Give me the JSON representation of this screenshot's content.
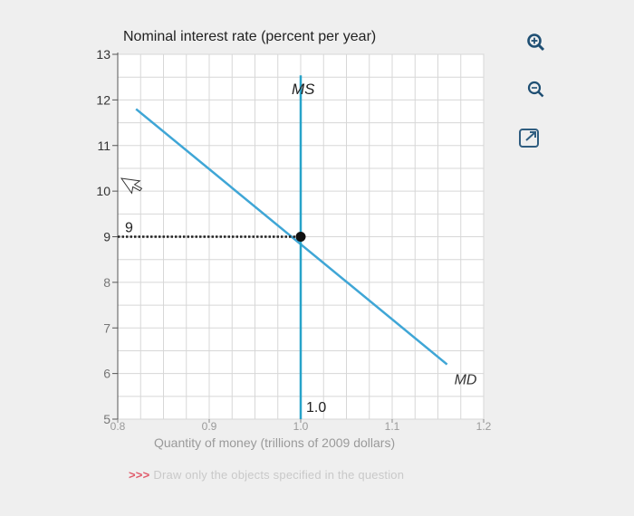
{
  "colors": {
    "curve": "#3fa6d6",
    "ms_line": "#27a3c9",
    "grid": "#d7d7d7",
    "point": "#111111",
    "hint_arrows": "#e05a6a",
    "hint_text": "#c9c9c9"
  },
  "icons": {
    "zoom_in": "zoom-in-icon",
    "zoom_out": "zoom-out-icon",
    "popout": "popout-icon"
  },
  "hint": {
    "arrows": ">>>",
    "text": "Draw only the objects specified in the question"
  },
  "chart_data": {
    "type": "line",
    "title": "",
    "ylabel": "Nominal interest rate (percent per year)",
    "xlabel": "Quantity of money (trillions of 2009 dollars)",
    "xlim": [
      0.8,
      1.2
    ],
    "ylim": [
      5,
      13
    ],
    "x_ticks": [
      "0.8",
      "0.9",
      "1.0",
      "1.1",
      "1.2"
    ],
    "y_ticks": [
      "5",
      "6",
      "7",
      "8",
      "9",
      "10",
      "11",
      "12",
      "13"
    ],
    "grid": true,
    "series": [
      {
        "name": "MD",
        "type": "line",
        "points": [
          [
            0.82,
            11.8
          ],
          [
            1.16,
            6.2
          ]
        ]
      },
      {
        "name": "MS",
        "type": "vertical",
        "x": 1.0,
        "y_range": [
          5,
          12.5
        ]
      }
    ],
    "equilibrium": {
      "x": 1.0,
      "y": 9.0,
      "x_label": "1.0",
      "y_label": "9"
    }
  }
}
